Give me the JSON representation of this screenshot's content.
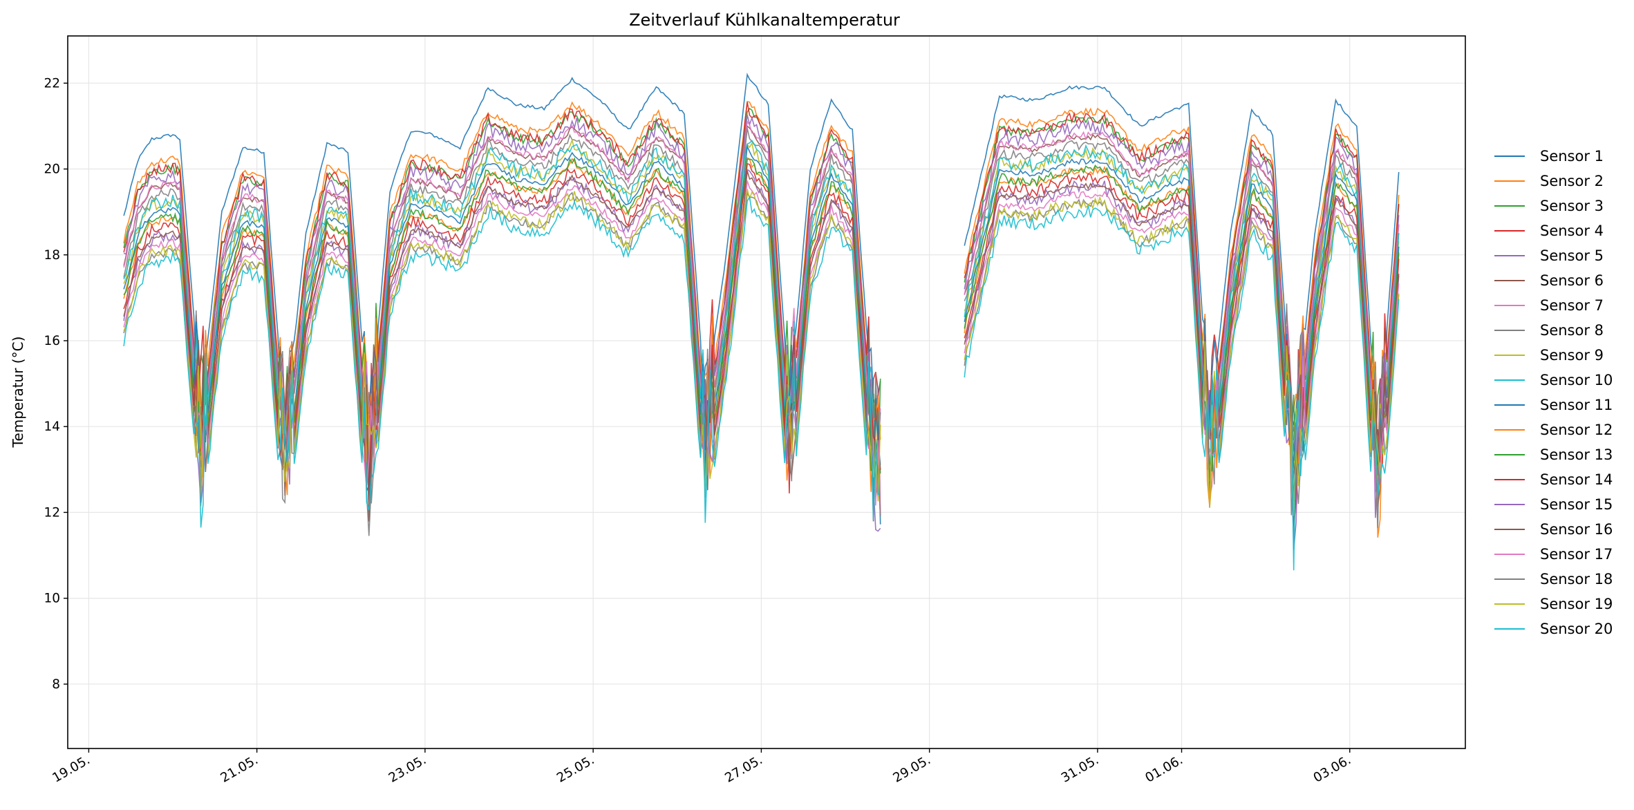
{
  "chart_data": {
    "type": "line",
    "title": "Zeitverlauf Kühlkanaltemperatur",
    "xlabel": "",
    "ylabel": "Temperatur (°C)",
    "x_type": "date",
    "xlim": [
      "2025-05-18T18:00",
      "2025-06-04T09:00"
    ],
    "ylim": [
      6.5,
      23.1
    ],
    "x_ticks": [
      {
        "date": "2025-05-19T00:00",
        "label": "19.05."
      },
      {
        "date": "2025-05-21T00:00",
        "label": "21.05."
      },
      {
        "date": "2025-05-23T00:00",
        "label": "23.05."
      },
      {
        "date": "2025-05-25T00:00",
        "label": "25.05."
      },
      {
        "date": "2025-05-27T00:00",
        "label": "27.05."
      },
      {
        "date": "2025-05-29T00:00",
        "label": "29.05."
      },
      {
        "date": "2025-05-31T00:00",
        "label": "31.05."
      },
      {
        "date": "2025-06-01T00:00",
        "label": "01.06."
      },
      {
        "date": "2025-06-03T00:00",
        "label": "03.06."
      }
    ],
    "y_ticks": [
      8,
      10,
      12,
      14,
      16,
      18,
      20,
      22
    ],
    "grid": true,
    "legend_position": "right",
    "series_colors": [
      "#1f77b4",
      "#ff7f0e",
      "#2ca02c",
      "#d62728",
      "#9467bd",
      "#8c564b",
      "#e377c2",
      "#7f7f7f",
      "#bcbd22",
      "#17becf",
      "#1f77b4",
      "#ff7f0e",
      "#2ca02c",
      "#d62728",
      "#9467bd",
      "#8c564b",
      "#e377c2",
      "#7f7f7f",
      "#bcbd22",
      "#17becf"
    ],
    "series_names": [
      "Sensor 1",
      "Sensor 2",
      "Sensor 3",
      "Sensor 4",
      "Sensor 5",
      "Sensor 6",
      "Sensor 7",
      "Sensor 8",
      "Sensor 9",
      "Sensor 10",
      "Sensor 11",
      "Sensor 12",
      "Sensor 13",
      "Sensor 14",
      "Sensor 15",
      "Sensor 16",
      "Sensor 17",
      "Sensor 18",
      "Sensor 19",
      "Sensor 20"
    ],
    "reference_series_sensor_1": {
      "x": [
        "2025-05-19T10:00",
        "2025-05-19T14:00",
        "2025-05-19T18:00",
        "2025-05-20T00:00",
        "2025-05-20T02:00",
        "2025-05-20T08:00",
        "2025-05-20T14:00",
        "2025-05-20T20:00",
        "2025-05-21T02:00",
        "2025-05-21T08:00",
        "2025-05-21T14:00",
        "2025-05-21T20:00",
        "2025-05-22T02:00",
        "2025-05-22T08:00",
        "2025-05-22T14:00",
        "2025-05-22T20:00",
        "2025-05-23T02:00",
        "2025-05-23T10:00",
        "2025-05-23T18:00",
        "2025-05-24T02:00",
        "2025-05-24T10:00",
        "2025-05-24T18:00",
        "2025-05-25T02:00",
        "2025-05-25T10:00",
        "2025-05-25T18:00",
        "2025-05-26T02:00",
        "2025-05-26T08:00",
        "2025-05-26T14:00",
        "2025-05-26T20:00",
        "2025-05-27T02:00",
        "2025-05-27T08:00",
        "2025-05-27T14:00",
        "2025-05-27T20:00",
        "2025-05-28T02:00",
        "2025-05-28T08:00",
        "2025-05-28T10:00",
        "2025-05-29T10:00",
        "2025-05-29T20:00",
        "2025-05-30T06:00",
        "2025-05-30T16:00",
        "2025-05-31T02:00",
        "2025-05-31T12:00",
        "2025-05-31T22:00",
        "2025-06-01T02:00",
        "2025-06-01T08:00",
        "2025-06-01T14:00",
        "2025-06-01T20:00",
        "2025-06-02T02:00",
        "2025-06-02T08:00",
        "2025-06-02T14:00",
        "2025-06-02T20:00",
        "2025-06-03T02:00",
        "2025-06-03T08:00",
        "2025-06-03T14:00"
      ],
      "y": [
        18.9,
        20.2,
        20.7,
        20.8,
        20.7,
        14.5,
        19.0,
        20.5,
        20.4,
        14.0,
        18.5,
        20.6,
        20.4,
        13.8,
        19.5,
        20.9,
        20.8,
        20.5,
        21.9,
        21.5,
        21.4,
        22.1,
        21.6,
        20.9,
        21.9,
        21.3,
        14.5,
        18.0,
        22.2,
        21.5,
        14.5,
        20.0,
        21.6,
        20.9,
        14.0,
        14.0,
        18.2,
        21.7,
        21.6,
        21.9,
        21.9,
        21.0,
        21.4,
        21.5,
        14.0,
        18.5,
        21.4,
        20.8,
        13.5,
        18.5,
        21.6,
        21.0,
        13.5,
        19.9
      ]
    }
  },
  "legend": {
    "items": [
      "Sensor 1",
      "Sensor 2",
      "Sensor 3",
      "Sensor 4",
      "Sensor 5",
      "Sensor 6",
      "Sensor 7",
      "Sensor 8",
      "Sensor 9",
      "Sensor 10",
      "Sensor 11",
      "Sensor 12",
      "Sensor 13",
      "Sensor 14",
      "Sensor 15",
      "Sensor 16",
      "Sensor 17",
      "Sensor 18",
      "Sensor 19",
      "Sensor 20"
    ]
  }
}
